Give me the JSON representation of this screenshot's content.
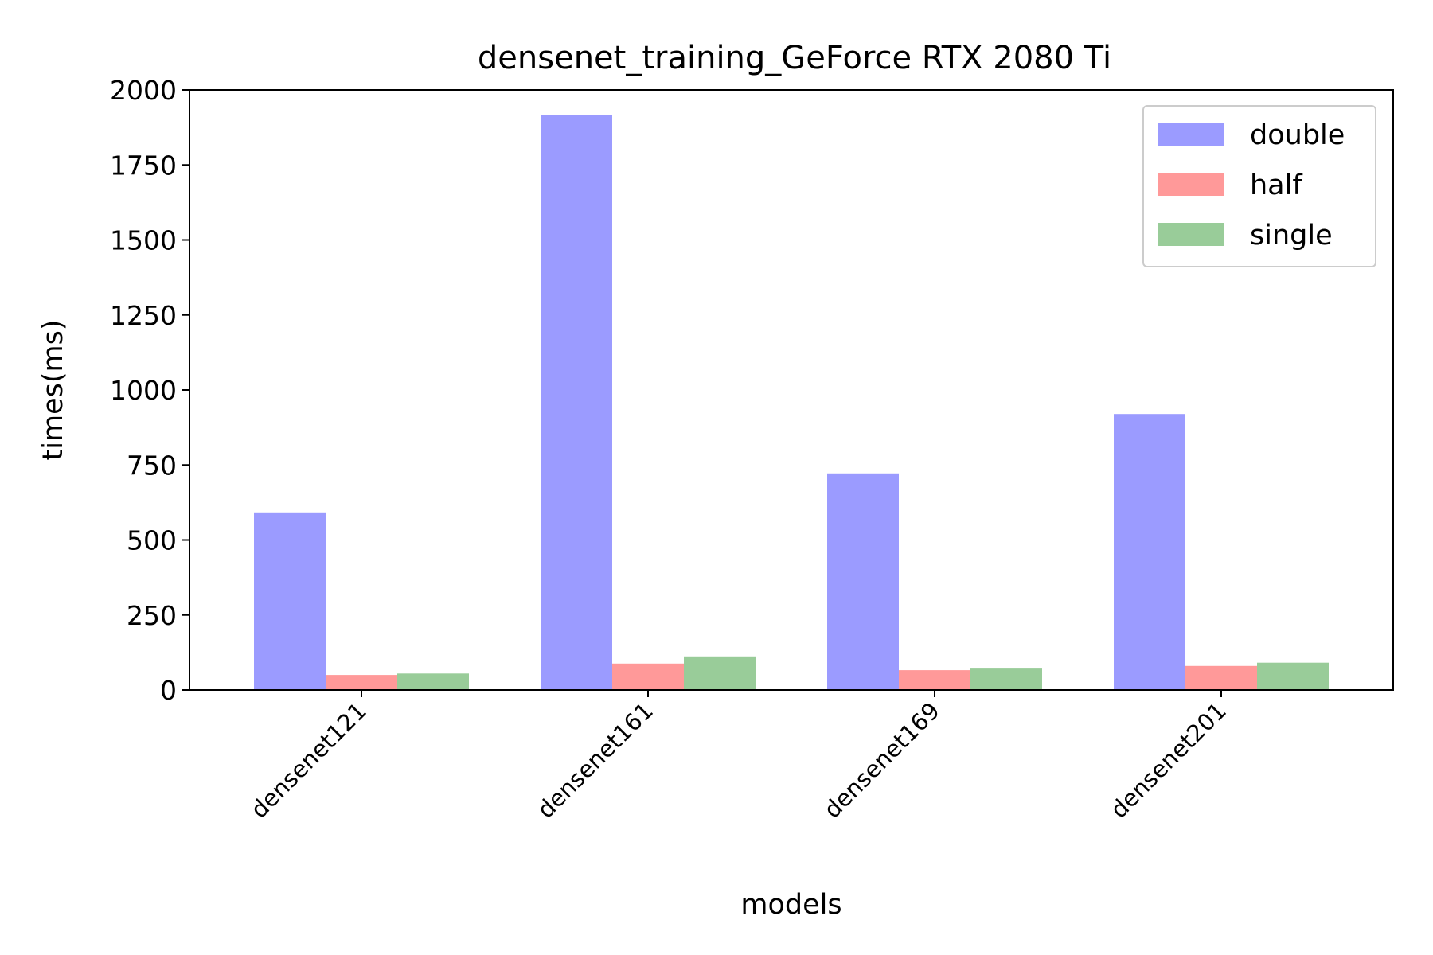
{
  "chart_data": {
    "type": "bar",
    "title": "densenet_training_GeForce RTX 2080 Ti",
    "xlabel": "models",
    "ylabel": "times(ms)",
    "categories": [
      "densenet121",
      "densenet161",
      "densenet169",
      "densenet201"
    ],
    "ylim": [
      0,
      2000
    ],
    "yticks": [
      0,
      250,
      500,
      750,
      1000,
      1250,
      1500,
      1750,
      2000
    ],
    "grid": false,
    "legend_position": "top-right",
    "series": [
      {
        "name": "double",
        "color": "#9b9bff",
        "values": [
          592,
          1915,
          722,
          920
        ]
      },
      {
        "name": "half",
        "color": "#ff9999",
        "values": [
          50,
          88,
          66,
          80
        ]
      },
      {
        "name": "single",
        "color": "#99cc99",
        "values": [
          55,
          112,
          74,
          91
        ]
      }
    ]
  }
}
